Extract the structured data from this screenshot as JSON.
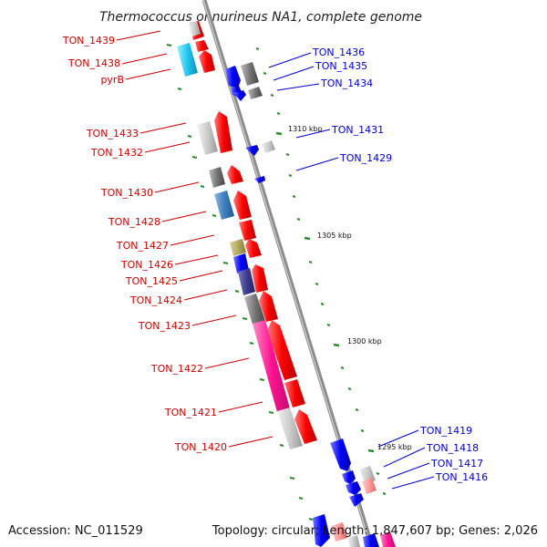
{
  "title": "Thermococcus onnurineus NA1, complete genome",
  "accession_text": "Accession: NC_011529",
  "topology_text": "Topology: circular; Length: 1,847,607 bp; Genes: 2,026",
  "scale_ticks": [
    "1310 kbp",
    "1305 kbp",
    "1300 kbp",
    "1295 kbp"
  ],
  "left_labels": [
    "TON_1439",
    "TON_1438",
    "pyrB",
    "TON_1433",
    "TON_1432",
    "TON_1430",
    "TON_1428",
    "TON_1427",
    "TON_1426",
    "TON_1425",
    "TON_1424",
    "TON_1423",
    "TON_1422",
    "TON_1421",
    "TON_1420"
  ],
  "right_labels": [
    "TON_1436",
    "TON_1435",
    "TON_1434",
    "TON_1431",
    "TON_1429",
    "TON_1419",
    "TON_1418",
    "TON_1417",
    "TON_1416"
  ],
  "colors": {
    "forward_strand": "#ff0000",
    "reverse_strand": "#0000ff",
    "backbone": "#8c8c8c",
    "left_label": "#cc0000",
    "right_label": "#0000cc",
    "tick": "#2b8a2b"
  }
}
